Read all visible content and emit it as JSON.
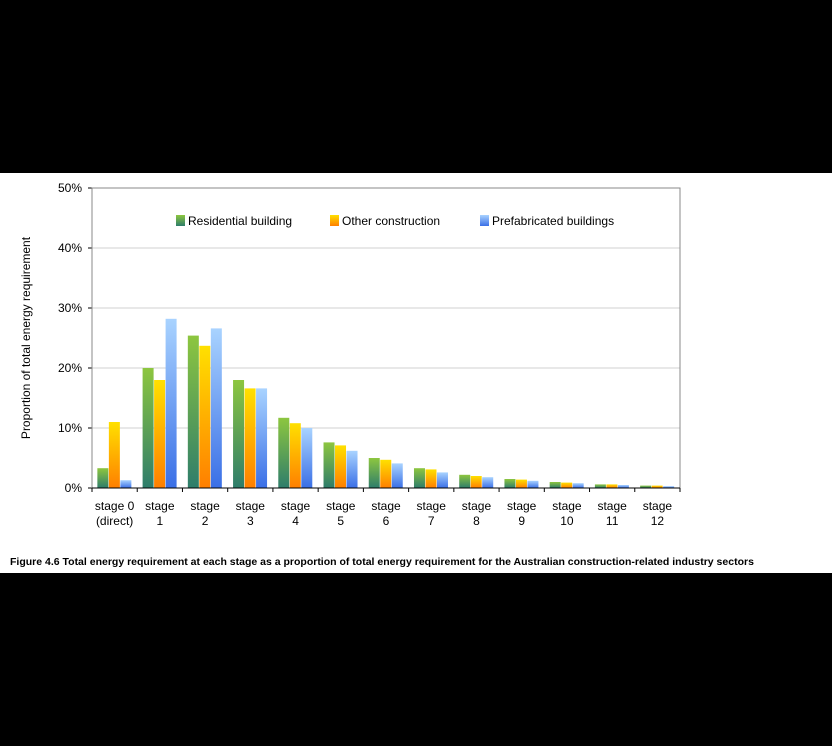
{
  "figure": {
    "caption": "Figure 4.6 Total energy requirement at each stage as a proportion of total energy requirement for the Australian construction-related industry sectors"
  },
  "chart_data": {
    "type": "bar",
    "ylabel": "Proportion of total energy requirement",
    "xlabel": "",
    "ylim": [
      0,
      50
    ],
    "yticks": [
      "0%",
      "10%",
      "20%",
      "30%",
      "40%",
      "50%"
    ],
    "grid": true,
    "legend_position": "top",
    "categories": [
      [
        "stage 0",
        "(direct)"
      ],
      [
        "stage",
        "1"
      ],
      [
        "stage",
        "2"
      ],
      [
        "stage",
        "3"
      ],
      [
        "stage",
        "4"
      ],
      [
        "stage",
        "5"
      ],
      [
        "stage",
        "6"
      ],
      [
        "stage",
        "7"
      ],
      [
        "stage",
        "8"
      ],
      [
        "stage",
        "9"
      ],
      [
        "stage",
        "10"
      ],
      [
        "stage",
        "11"
      ],
      [
        "stage",
        "12"
      ]
    ],
    "series": [
      {
        "name": "Residential building",
        "color_top": "#8dc63f",
        "color_bottom": "#2e7d6b",
        "values": [
          3.3,
          20.0,
          25.4,
          18.0,
          11.7,
          7.6,
          5.0,
          3.3,
          2.2,
          1.5,
          1.0,
          0.6,
          0.4
        ]
      },
      {
        "name": "Other construction",
        "color_top": "#ffe000",
        "color_bottom": "#ff7f00",
        "values": [
          11.0,
          18.0,
          23.7,
          16.6,
          10.8,
          7.1,
          4.7,
          3.1,
          2.0,
          1.4,
          0.9,
          0.6,
          0.4
        ]
      },
      {
        "name": "Prefabricated buildings",
        "color_top": "#a9d3ff",
        "color_bottom": "#3a6fe6",
        "values": [
          1.3,
          28.2,
          26.6,
          16.6,
          10.0,
          6.2,
          4.1,
          2.6,
          1.8,
          1.2,
          0.8,
          0.5,
          0.3
        ]
      }
    ]
  }
}
